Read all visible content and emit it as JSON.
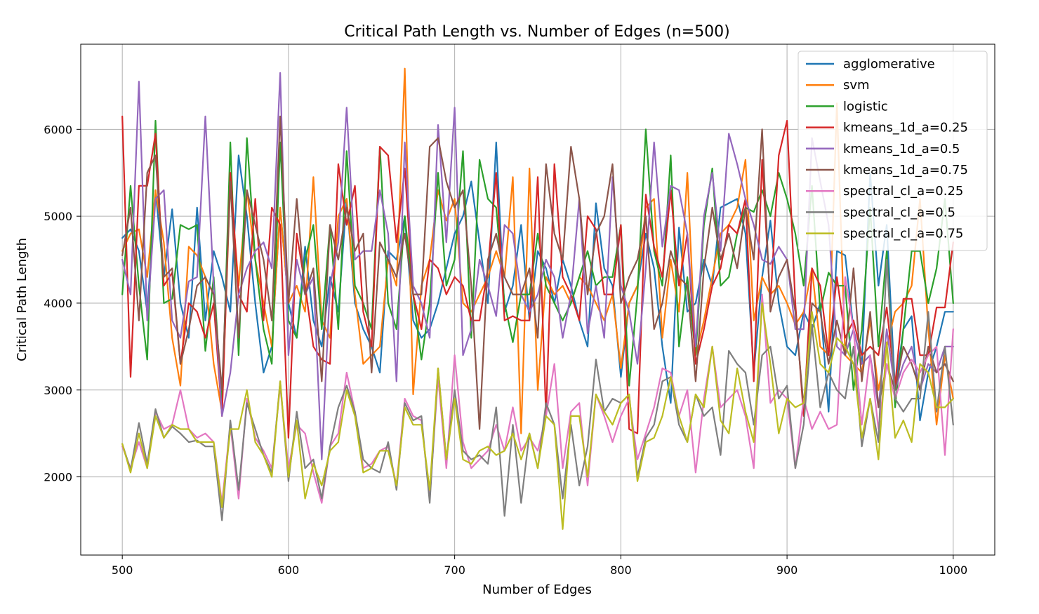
{
  "chart_data": {
    "type": "line",
    "title": "Critical Path Length vs. Number of Edges (n=500)",
    "xlabel": "Number of Edges",
    "ylabel": "Critical Path Length",
    "xlim": [
      475,
      1025
    ],
    "ylim": [
      1100,
      6980
    ],
    "xticks": [
      500,
      600,
      700,
      800,
      900,
      1000
    ],
    "yticks": [
      2000,
      3000,
      4000,
      5000,
      6000
    ],
    "grid": true,
    "legend_position": "top-right",
    "x": [
      500,
      505,
      510,
      515,
      520,
      525,
      530,
      535,
      540,
      545,
      550,
      555,
      560,
      565,
      570,
      575,
      580,
      585,
      590,
      595,
      600,
      605,
      610,
      615,
      620,
      625,
      630,
      635,
      640,
      645,
      650,
      655,
      660,
      665,
      670,
      675,
      680,
      685,
      690,
      695,
      700,
      705,
      710,
      715,
      720,
      725,
      730,
      735,
      740,
      745,
      750,
      755,
      760,
      765,
      770,
      775,
      780,
      785,
      790,
      795,
      800,
      805,
      810,
      815,
      820,
      825,
      830,
      835,
      840,
      845,
      850,
      855,
      860,
      865,
      870,
      875,
      880,
      885,
      890,
      895,
      900,
      905,
      910,
      915,
      920,
      925,
      930,
      935,
      940,
      945,
      950,
      955,
      960,
      965,
      970,
      975,
      980,
      985,
      990,
      995,
      1000
    ],
    "series": [
      {
        "name": "agglomerative",
        "color": "#1f77b4",
        "values": [
          4750,
          4850,
          4600,
          3900,
          5300,
          4300,
          5080,
          4000,
          3600,
          5100,
          3800,
          4600,
          4300,
          3900,
          5700,
          5000,
          4000,
          3200,
          3500,
          5100,
          4000,
          3600,
          4650,
          3800,
          3500,
          4300,
          3900,
          5200,
          4000,
          3700,
          3500,
          3200,
          4600,
          4500,
          5000,
          3800,
          3600,
          3700,
          4000,
          4400,
          4800,
          5000,
          5400,
          4700,
          4000,
          5850,
          3900,
          4200,
          4900,
          3800,
          4600,
          4400,
          4000,
          4500,
          4200,
          3800,
          3500,
          5150,
          4400,
          4200,
          3150,
          4000,
          4200,
          4800,
          4400,
          3500,
          2850,
          4870,
          3900,
          4000,
          4500,
          4200,
          5100,
          5150,
          5200,
          4800,
          3200,
          4300,
          4950,
          4000,
          3500,
          3400,
          3900,
          3700,
          4000,
          2750,
          4600,
          4550,
          3700,
          3300,
          5500,
          4200,
          4900,
          3000,
          3700,
          3850,
          2650,
          3200,
          3500,
          3900,
          3900
        ]
      },
      {
        "name": "svm",
        "color": "#ff7f0e",
        "values": [
          4600,
          4800,
          4850,
          4300,
          5300,
          4700,
          3600,
          3050,
          4650,
          4550,
          4300,
          3300,
          2750,
          5400,
          4200,
          5300,
          4500,
          4000,
          3500,
          5100,
          4000,
          4200,
          3900,
          5450,
          3800,
          3600,
          5000,
          5200,
          4100,
          3300,
          3400,
          3500,
          4500,
          4200,
          6700,
          2950,
          4200,
          4500,
          5300,
          4950,
          5200,
          4000,
          3900,
          4100,
          4300,
          4600,
          4300,
          5450,
          2500,
          5550,
          3000,
          4300,
          4100,
          4200,
          4000,
          4300,
          4200,
          4000,
          3800,
          4100,
          3250,
          4000,
          4200,
          5100,
          5200,
          3600,
          4500,
          3900,
          5500,
          3400,
          3800,
          4300,
          4800,
          4900,
          5100,
          5650,
          3800,
          4300,
          4100,
          4200,
          4000,
          3750,
          3900,
          4400,
          3500,
          3400,
          6300,
          3400,
          3300,
          3200,
          3800,
          3000,
          3500,
          3900,
          4000,
          4200,
          5200,
          3700,
          2600,
          3400,
          2900
        ]
      },
      {
        "name": "logistic",
        "color": "#2ca02c",
        "values": [
          4100,
          5350,
          4200,
          3350,
          6100,
          4000,
          4050,
          4900,
          4850,
          4900,
          3450,
          4300,
          2800,
          5850,
          3400,
          5900,
          4500,
          3700,
          3300,
          5850,
          3800,
          3600,
          4500,
          4900,
          3700,
          4900,
          3700,
          5750,
          4200,
          4000,
          3700,
          5800,
          4000,
          3700,
          5000,
          4100,
          3350,
          4000,
          5500,
          4200,
          4500,
          5750,
          3600,
          5650,
          5200,
          5100,
          4000,
          3550,
          4100,
          4100,
          4800,
          4200,
          4000,
          3800,
          4000,
          4300,
          4600,
          4200,
          4300,
          4300,
          4900,
          3050,
          4100,
          6000,
          4600,
          4200,
          5700,
          3500,
          4300,
          3400,
          4900,
          5550,
          4200,
          4300,
          4800,
          5100,
          5050,
          5300,
          5000,
          5500,
          5200,
          4800,
          4200,
          5350,
          3900,
          4350,
          4200,
          4200,
          3000,
          3700,
          5100,
          3500,
          4600,
          2800,
          3700,
          4600,
          4600,
          4000,
          4400,
          5200,
          4000
        ]
      },
      {
        "name": "kmeans_1d_a=0.25",
        "color": "#d62728",
        "values": [
          6150,
          3150,
          5350,
          5350,
          5950,
          4200,
          4350,
          3300,
          4000,
          3900,
          3600,
          4000,
          2700,
          5500,
          4100,
          3900,
          5200,
          3800,
          5100,
          4900,
          2450,
          4800,
          4200,
          3500,
          3350,
          3300,
          5600,
          4900,
          5350,
          3900,
          3500,
          5800,
          5700,
          4700,
          5550,
          4100,
          3700,
          4500,
          4400,
          4100,
          4300,
          4200,
          3800,
          3800,
          4400,
          5500,
          3800,
          3850,
          3800,
          3800,
          5450,
          2700,
          5600,
          4300,
          4100,
          3800,
          5000,
          4850,
          4100,
          4100,
          4900,
          2550,
          2500,
          5250,
          4650,
          4300,
          5300,
          4200,
          4800,
          3300,
          3700,
          4200,
          4400,
          4900,
          4800,
          5200,
          3100,
          5650,
          4000,
          5700,
          6100,
          4000,
          2700,
          4400,
          4200,
          3400,
          4300,
          3600,
          3800,
          3400,
          3500,
          3400,
          3950,
          3050,
          4050,
          4050,
          3400,
          3400,
          3950,
          3950,
          4700
        ]
      },
      {
        "name": "kmeans_1d_a=0.5",
        "color": "#9467bd",
        "values": [
          4500,
          4100,
          6550,
          3800,
          5200,
          5300,
          3800,
          3600,
          4250,
          4300,
          6150,
          4200,
          2700,
          3200,
          4100,
          4400,
          4600,
          4700,
          4400,
          6650,
          3400,
          4500,
          4100,
          4300,
          2200,
          4200,
          4700,
          6250,
          4500,
          4600,
          4600,
          5300,
          4800,
          3100,
          5850,
          4200,
          4000,
          3600,
          6050,
          4700,
          6250,
          3400,
          3700,
          4500,
          4200,
          3850,
          4900,
          4800,
          4100,
          3900,
          4100,
          4500,
          4300,
          3600,
          4100,
          5200,
          3650,
          4200,
          3600,
          5450,
          4200,
          3900,
          3300,
          4400,
          5850,
          4650,
          5350,
          5300,
          4800,
          3500,
          5000,
          5500,
          4600,
          5950,
          5600,
          5200,
          4900,
          4500,
          4450,
          4650,
          4500,
          3700,
          3700,
          5900,
          5400,
          4900,
          3500,
          3400,
          3700,
          3300,
          3400,
          2800,
          3700,
          3000,
          3300,
          3500,
          3000,
          3300,
          3200,
          3500,
          3500
        ]
      },
      {
        "name": "kmeans_1d_a=0.75",
        "color": "#8c564b",
        "values": [
          4550,
          5100,
          3800,
          5500,
          5700,
          4300,
          4400,
          3300,
          3700,
          4200,
          4300,
          4100,
          3000,
          5400,
          3600,
          5300,
          4900,
          4500,
          3800,
          6150,
          4000,
          5200,
          4100,
          4400,
          3100,
          4900,
          4500,
          5100,
          4600,
          4800,
          3200,
          4700,
          4500,
          4300,
          4800,
          4100,
          4100,
          5800,
          5900,
          5400,
          5100,
          5300,
          4200,
          2550,
          4500,
          4800,
          4300,
          4100,
          4100,
          4400,
          3600,
          5600,
          4800,
          4500,
          5800,
          5200,
          4100,
          4800,
          5000,
          5600,
          4000,
          4300,
          4500,
          5000,
          3700,
          4000,
          4600,
          4300,
          4200,
          3100,
          4400,
          5100,
          4500,
          4800,
          4400,
          5100,
          4500,
          6000,
          3900,
          4300,
          4500,
          3900,
          2800,
          4000,
          3900,
          3300,
          3800,
          3400,
          4400,
          3100,
          3900,
          2800,
          3300,
          3000,
          3500,
          3300,
          3000,
          3500,
          3200,
          3300,
          3100
        ]
      },
      {
        "name": "spectral_cl_a=0.25",
        "color": "#e377c2",
        "values": [
          2350,
          2100,
          2400,
          2100,
          2750,
          2550,
          2600,
          3000,
          2550,
          2450,
          2500,
          2400,
          1700,
          2600,
          1750,
          2900,
          2450,
          2300,
          2100,
          3050,
          2100,
          2600,
          2500,
          2050,
          1700,
          2350,
          2500,
          3200,
          2750,
          2100,
          2150,
          2300,
          2350,
          1900,
          2900,
          2700,
          2650,
          1750,
          3150,
          2100,
          3400,
          2400,
          2100,
          2200,
          2300,
          2600,
          2300,
          2800,
          2300,
          2450,
          2300,
          2700,
          3300,
          2100,
          2750,
          2850,
          1900,
          2950,
          2700,
          2400,
          2700,
          2900,
          2200,
          2500,
          2800,
          3250,
          3200,
          2700,
          3000,
          2050,
          2900,
          3500,
          2800,
          2900,
          3000,
          2700,
          2100,
          4100,
          2850,
          3000,
          2900,
          2100,
          2900,
          2550,
          2750,
          2550,
          2600,
          4300,
          3700,
          2600,
          3400,
          2550,
          3300,
          2900,
          3200,
          3350,
          3200,
          3400,
          3500,
          2250,
          3700
        ]
      },
      {
        "name": "spectral_cl_a=0.5",
        "color": "#7f7f7f",
        "values": [
          2380,
          2080,
          2620,
          2150,
          2780,
          2450,
          2580,
          2500,
          2400,
          2420,
          2350,
          2350,
          1500,
          2650,
          1850,
          2850,
          2550,
          2250,
          2050,
          3100,
          1950,
          2750,
          2100,
          2200,
          1750,
          2350,
          2800,
          3050,
          2750,
          2200,
          2100,
          2050,
          2400,
          1850,
          2850,
          2650,
          2700,
          1700,
          3250,
          2200,
          3000,
          2300,
          2200,
          2250,
          2150,
          2800,
          1550,
          2600,
          1700,
          2500,
          2100,
          2850,
          2600,
          1750,
          2600,
          1900,
          2350,
          3350,
          2750,
          2900,
          2850,
          2950,
          2000,
          2450,
          2600,
          3100,
          3150,
          2600,
          2400,
          2950,
          2700,
          2800,
          2250,
          3450,
          3300,
          3200,
          2600,
          3400,
          3500,
          2900,
          3050,
          2100,
          2600,
          3750,
          2800,
          3200,
          3000,
          2900,
          3500,
          2350,
          2900,
          2400,
          4500,
          2900,
          2750,
          2900,
          2900,
          3900,
          2750,
          3500,
          2600
        ]
      },
      {
        "name": "spectral_cl_a=0.75",
        "color": "#bcbd22",
        "values": [
          2380,
          2050,
          2500,
          2100,
          2700,
          2450,
          2600,
          2550,
          2550,
          2400,
          2400,
          2400,
          1650,
          2550,
          2550,
          3000,
          2400,
          2250,
          2000,
          3100,
          2000,
          2650,
          1750,
          2150,
          1900,
          2300,
          2400,
          3000,
          2700,
          2050,
          2100,
          2300,
          2300,
          1900,
          2800,
          2600,
          2600,
          1850,
          3250,
          2200,
          2900,
          2200,
          2150,
          2300,
          2350,
          2250,
          2300,
          2500,
          2200,
          2500,
          2100,
          2700,
          2600,
          1400,
          2700,
          2700,
          2000,
          2950,
          2750,
          2600,
          2850,
          2950,
          1950,
          2400,
          2450,
          2700,
          3150,
          2700,
          2400,
          2950,
          2800,
          3500,
          2650,
          2500,
          3250,
          2750,
          2400,
          4000,
          3300,
          2500,
          2900,
          2800,
          2850,
          3900,
          3300,
          3200,
          3600,
          3500,
          3300,
          2450,
          2900,
          2200,
          3550,
          2450,
          2650,
          2400,
          3300,
          3200,
          2800,
          2800,
          2900
        ]
      }
    ]
  }
}
